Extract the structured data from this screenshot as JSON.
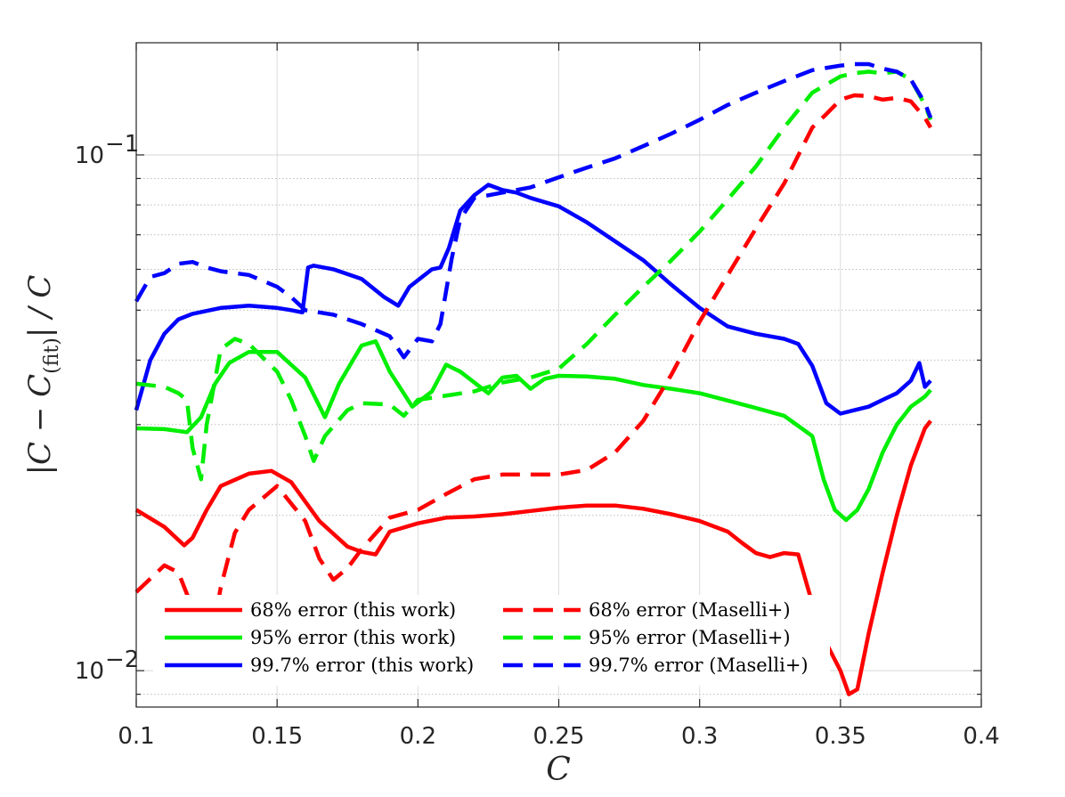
{
  "chart_data": {
    "type": "line",
    "title": "",
    "xlabel": "C",
    "ylabel": "|C − C(fit)| / C",
    "ylabel_parts": {
      "left": "|C − C",
      "subscript": "(fit)",
      "right": "| / C"
    },
    "xlim": [
      0.1,
      0.4
    ],
    "ylim": [
      0.0085,
      0.165
    ],
    "yscale": "log",
    "grid": true,
    "legend_position": "bottom-left",
    "x_ticks": [
      0.1,
      0.15,
      0.2,
      0.25,
      0.3,
      0.35,
      0.4
    ],
    "x_tick_labels": [
      "0.1",
      "0.15",
      "0.2",
      "0.25",
      "0.3",
      "0.35",
      "0.4"
    ],
    "y_ticks": [
      0.01,
      0.1
    ],
    "y_tick_labels": [
      {
        "base": "10",
        "exp": "−2"
      },
      {
        "base": "10",
        "exp": "−1"
      }
    ],
    "series": [
      {
        "name": "68% error (this work)",
        "color": "#ff0000",
        "dash": "solid",
        "x": [
          0.1,
          0.11,
          0.117,
          0.12,
          0.125,
          0.13,
          0.14,
          0.148,
          0.155,
          0.165,
          0.175,
          0.18,
          0.185,
          0.19,
          0.2,
          0.21,
          0.22,
          0.23,
          0.24,
          0.25,
          0.26,
          0.27,
          0.28,
          0.29,
          0.3,
          0.31,
          0.315,
          0.32,
          0.325,
          0.33,
          0.335,
          0.34,
          0.345,
          0.35,
          0.353,
          0.356,
          0.36,
          0.365,
          0.37,
          0.375,
          0.38,
          0.382
        ],
        "y": [
          0.0205,
          0.019,
          0.0175,
          0.0181,
          0.0205,
          0.0228,
          0.0241,
          0.0244,
          0.0232,
          0.0195,
          0.0174,
          0.017,
          0.0168,
          0.0186,
          0.0193,
          0.0198,
          0.0199,
          0.0201,
          0.0204,
          0.0207,
          0.0209,
          0.0209,
          0.0206,
          0.0201,
          0.0195,
          0.0186,
          0.0177,
          0.0169,
          0.0166,
          0.0169,
          0.0168,
          0.0135,
          0.0113,
          0.01,
          0.009,
          0.0092,
          0.0118,
          0.0155,
          0.02,
          0.025,
          0.0295,
          0.0305
        ]
      },
      {
        "name": "95% error (this work)",
        "color": "#00ee00",
        "dash": "solid",
        "x": [
          0.1,
          0.11,
          0.118,
          0.123,
          0.128,
          0.133,
          0.14,
          0.15,
          0.16,
          0.167,
          0.172,
          0.18,
          0.185,
          0.19,
          0.198,
          0.205,
          0.21,
          0.215,
          0.225,
          0.23,
          0.235,
          0.24,
          0.245,
          0.25,
          0.26,
          0.27,
          0.28,
          0.29,
          0.3,
          0.31,
          0.32,
          0.33,
          0.34,
          0.344,
          0.348,
          0.352,
          0.356,
          0.36,
          0.365,
          0.37,
          0.375,
          0.38,
          0.382
        ],
        "y": [
          0.0295,
          0.0294,
          0.029,
          0.031,
          0.036,
          0.0395,
          0.0415,
          0.0415,
          0.037,
          0.031,
          0.036,
          0.0427,
          0.0435,
          0.038,
          0.0325,
          0.0348,
          0.0392,
          0.038,
          0.0345,
          0.037,
          0.0373,
          0.0352,
          0.0368,
          0.0373,
          0.0372,
          0.0368,
          0.0358,
          0.0352,
          0.0345,
          0.0334,
          0.0323,
          0.0312,
          0.0285,
          0.0235,
          0.0205,
          0.0196,
          0.0205,
          0.0225,
          0.0265,
          0.03,
          0.0325,
          0.034,
          0.035
        ]
      },
      {
        "name": "99.7% error (this work)",
        "color": "#0000ff",
        "dash": "solid",
        "x": [
          0.1,
          0.105,
          0.11,
          0.115,
          0.12,
          0.13,
          0.14,
          0.15,
          0.155,
          0.159,
          0.161,
          0.163,
          0.17,
          0.18,
          0.188,
          0.193,
          0.197,
          0.205,
          0.208,
          0.211,
          0.215,
          0.22,
          0.225,
          0.23,
          0.235,
          0.24,
          0.25,
          0.26,
          0.27,
          0.28,
          0.29,
          0.3,
          0.31,
          0.32,
          0.33,
          0.335,
          0.34,
          0.345,
          0.35,
          0.355,
          0.36,
          0.365,
          0.37,
          0.375,
          0.378,
          0.38,
          0.382
        ],
        "y": [
          0.032,
          0.04,
          0.045,
          0.048,
          0.0492,
          0.0505,
          0.051,
          0.0505,
          0.05,
          0.0495,
          0.0605,
          0.061,
          0.06,
          0.0575,
          0.053,
          0.051,
          0.0555,
          0.06,
          0.0605,
          0.066,
          0.078,
          0.0835,
          0.0875,
          0.0855,
          0.0845,
          0.0825,
          0.0795,
          0.074,
          0.068,
          0.0625,
          0.056,
          0.0505,
          0.0465,
          0.045,
          0.044,
          0.043,
          0.039,
          0.033,
          0.0315,
          0.032,
          0.0325,
          0.0335,
          0.0345,
          0.0365,
          0.0395,
          0.0355,
          0.0365
        ]
      },
      {
        "name": "68% error (Maselli+)",
        "color": "#ff0000",
        "dash": "dashed",
        "x": [
          0.1,
          0.11,
          0.115,
          0.12,
          0.123,
          0.126,
          0.13,
          0.135,
          0.14,
          0.15,
          0.16,
          0.165,
          0.17,
          0.175,
          0.18,
          0.19,
          0.2,
          0.21,
          0.22,
          0.23,
          0.25,
          0.26,
          0.27,
          0.28,
          0.29,
          0.3,
          0.31,
          0.32,
          0.33,
          0.34,
          0.345,
          0.35,
          0.355,
          0.36,
          0.365,
          0.37,
          0.375,
          0.38,
          0.382
        ],
        "y": [
          0.0142,
          0.016,
          0.0155,
          0.0132,
          0.0115,
          0.011,
          0.0145,
          0.0185,
          0.0205,
          0.0228,
          0.0195,
          0.0165,
          0.015,
          0.0158,
          0.0172,
          0.0198,
          0.0205,
          0.022,
          0.0235,
          0.024,
          0.024,
          0.0245,
          0.0265,
          0.0305,
          0.0375,
          0.0475,
          0.0585,
          0.072,
          0.088,
          0.113,
          0.12,
          0.128,
          0.1305,
          0.13,
          0.128,
          0.129,
          0.127,
          0.118,
          0.113
        ]
      },
      {
        "name": "95% error (Maselli+)",
        "color": "#00ee00",
        "dash": "dashed",
        "x": [
          0.1,
          0.11,
          0.115,
          0.118,
          0.12,
          0.123,
          0.125,
          0.13,
          0.135,
          0.14,
          0.15,
          0.155,
          0.16,
          0.163,
          0.167,
          0.175,
          0.18,
          0.19,
          0.195,
          0.2,
          0.22,
          0.23,
          0.24,
          0.25,
          0.26,
          0.27,
          0.28,
          0.29,
          0.3,
          0.31,
          0.32,
          0.33,
          0.34,
          0.35,
          0.355,
          0.36,
          0.365,
          0.37,
          0.375,
          0.38,
          0.382
        ],
        "y": [
          0.036,
          0.0355,
          0.0345,
          0.0335,
          0.027,
          0.0235,
          0.03,
          0.042,
          0.044,
          0.043,
          0.038,
          0.0335,
          0.0285,
          0.0255,
          0.0285,
          0.032,
          0.033,
          0.0328,
          0.0312,
          0.0335,
          0.0348,
          0.0362,
          0.037,
          0.0385,
          0.043,
          0.049,
          0.0555,
          0.0625,
          0.071,
          0.082,
          0.095,
          0.113,
          0.132,
          0.142,
          0.144,
          0.145,
          0.144,
          0.145,
          0.14,
          0.125,
          0.117
        ]
      },
      {
        "name": "99.7% error (Maselli+)",
        "color": "#0000ff",
        "dash": "dashed",
        "x": [
          0.1,
          0.105,
          0.11,
          0.115,
          0.12,
          0.125,
          0.13,
          0.14,
          0.15,
          0.155,
          0.16,
          0.17,
          0.18,
          0.19,
          0.195,
          0.2,
          0.205,
          0.208,
          0.212,
          0.215,
          0.22,
          0.225,
          0.23,
          0.24,
          0.25,
          0.26,
          0.27,
          0.28,
          0.29,
          0.3,
          0.31,
          0.32,
          0.33,
          0.34,
          0.35,
          0.355,
          0.36,
          0.365,
          0.37,
          0.375,
          0.38,
          0.382
        ],
        "y": [
          0.052,
          0.058,
          0.059,
          0.0615,
          0.062,
          0.0605,
          0.0595,
          0.0585,
          0.0555,
          0.053,
          0.05,
          0.049,
          0.047,
          0.0445,
          0.0405,
          0.044,
          0.0435,
          0.047,
          0.063,
          0.075,
          0.0825,
          0.0835,
          0.0845,
          0.0865,
          0.0905,
          0.0945,
          0.0985,
          0.104,
          0.11,
          0.117,
          0.125,
          0.132,
          0.139,
          0.146,
          0.149,
          0.15,
          0.15,
          0.147,
          0.145,
          0.14,
          0.126,
          0.118
        ]
      }
    ]
  }
}
